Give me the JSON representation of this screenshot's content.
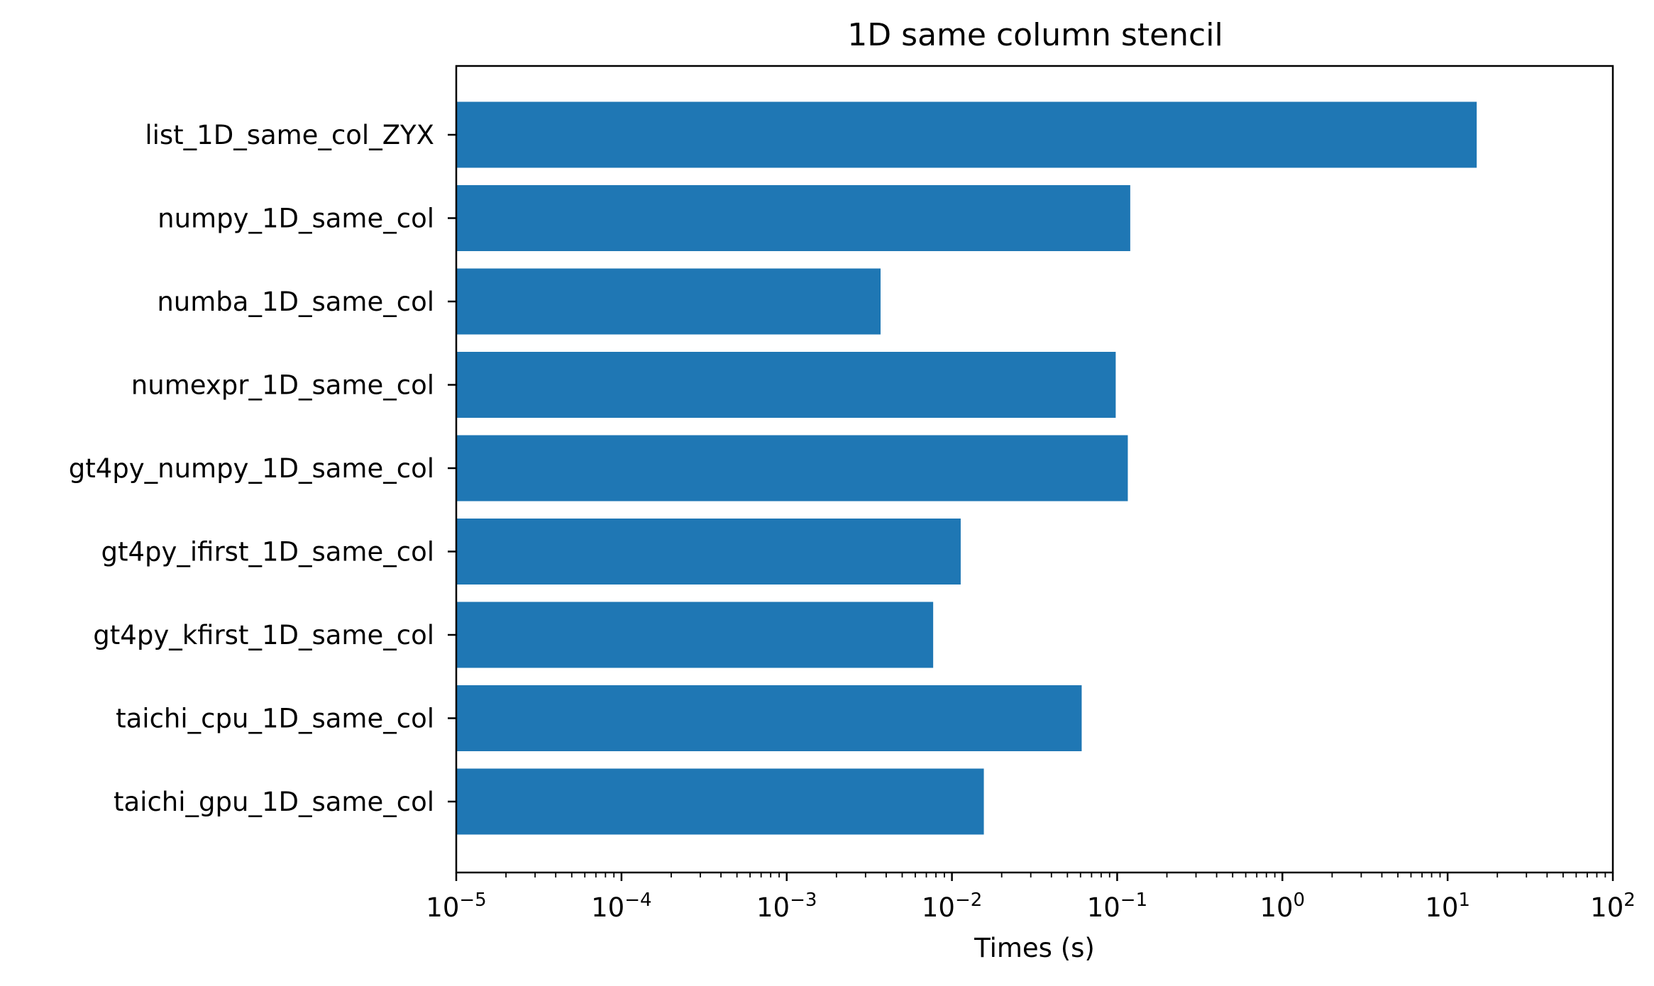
{
  "chart_data": {
    "type": "bar",
    "orientation": "horizontal",
    "title": "1D same column stencil",
    "xlabel": "Times (s)",
    "ylabel": "",
    "xscale": "log",
    "xlim": [
      1e-05,
      100
    ],
    "x_ticks": [
      {
        "value": 1e-05,
        "base": "10",
        "exp": "−5"
      },
      {
        "value": 0.0001,
        "base": "10",
        "exp": "−4"
      },
      {
        "value": 0.001,
        "base": "10",
        "exp": "−3"
      },
      {
        "value": 0.01,
        "base": "10",
        "exp": "−2"
      },
      {
        "value": 0.1,
        "base": "10",
        "exp": "−1"
      },
      {
        "value": 1,
        "base": "10",
        "exp": "0"
      },
      {
        "value": 10,
        "base": "10",
        "exp": "1"
      },
      {
        "value": 100,
        "base": "10",
        "exp": "2"
      }
    ],
    "categories": [
      "list_1D_same_col_ZYX",
      "numpy_1D_same_col",
      "numba_1D_same_col",
      "numexpr_1D_same_col",
      "gt4py_numpy_1D_same_col",
      "gt4py_ifirst_1D_same_col",
      "gt4py_kfirst_1D_same_col",
      "taichi_cpu_1D_same_col",
      "taichi_gpu_1D_same_col"
    ],
    "values": [
      15.0,
      0.12,
      0.0037,
      0.098,
      0.116,
      0.0113,
      0.0077,
      0.061,
      0.0156
    ],
    "bar_color": "#1f77b4",
    "grid": false,
    "legend": "none"
  }
}
